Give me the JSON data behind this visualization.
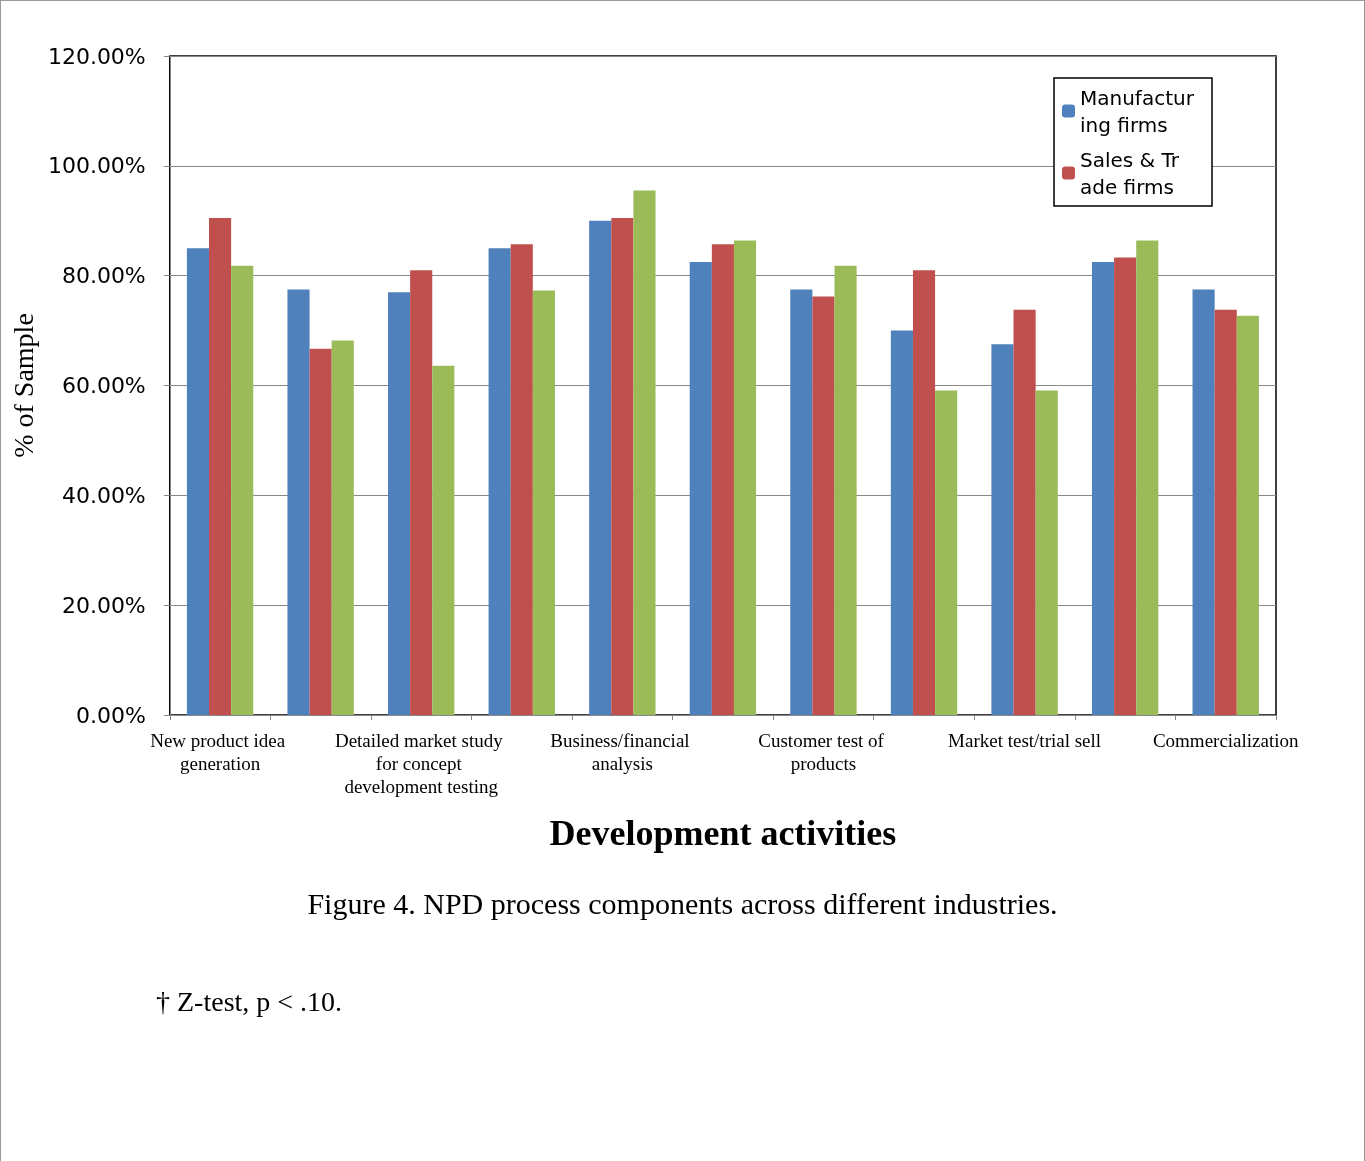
{
  "chart_data": {
    "type": "bar",
    "xlabel": "Development activities",
    "ylabel": "% of Sample",
    "categories": [
      "New product idea generation",
      null,
      "Detailed market study for concept development testing",
      null,
      "Business/financial analysis",
      null,
      "Customer test of products",
      null,
      "Market test/trial sell",
      null,
      "Commercialization"
    ],
    "series": [
      {
        "name": "Manufacturing firms",
        "color": "#4f81bd",
        "values": [
          85,
          77.5,
          77,
          85,
          90,
          82.5,
          77.5,
          70,
          67.5,
          82.5,
          77.5
        ]
      },
      {
        "name": "Sales & Trade firms",
        "color": "#c0504d",
        "values": [
          90.5,
          66.7,
          81,
          85.7,
          90.5,
          85.7,
          76.2,
          81,
          73.8,
          83.3,
          73.8
        ]
      },
      {
        "color": "#9bbb59",
        "values": [
          81.8,
          68.2,
          63.6,
          77.3,
          95.5,
          86.4,
          81.8,
          59.1,
          59.1,
          86.4,
          72.7
        ]
      }
    ],
    "ylim": [
      0,
      120
    ],
    "yticks": [
      {
        "value": 0,
        "label": "0.00%"
      },
      {
        "value": 20,
        "label": "20.00%"
      },
      {
        "value": 40,
        "label": "40.00%"
      },
      {
        "value": 60,
        "label": "60.00%"
      },
      {
        "value": 80,
        "label": "80.00%"
      },
      {
        "value": 100,
        "label": "100.00%"
      },
      {
        "value": 120,
        "label": "120.00%"
      }
    ],
    "grid": "y",
    "legend": "top right",
    "annotations": [
      "Figure 4. NPD process components across different industries.",
      "† Z-test, p < .10."
    ]
  }
}
